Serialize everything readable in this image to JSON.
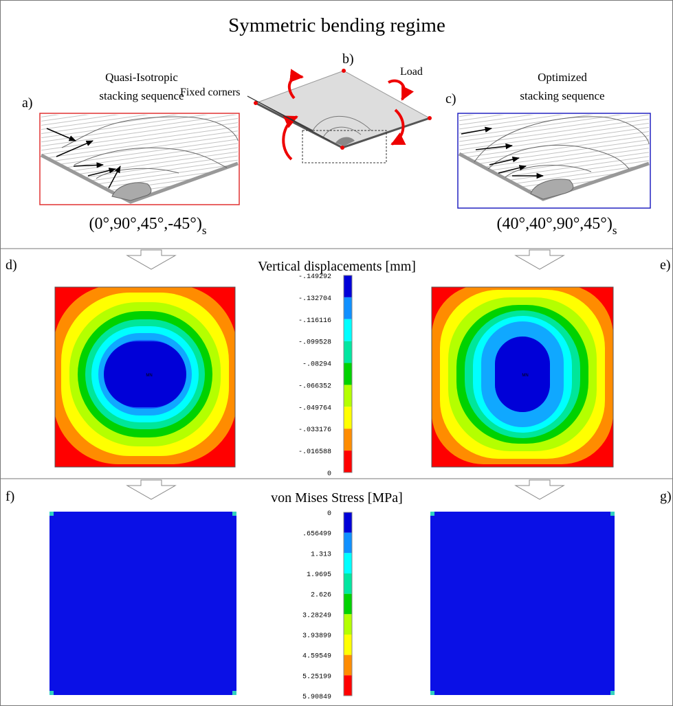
{
  "title": "Symmetric bending regime",
  "panel_labels": [
    "a)",
    "b)",
    "c)",
    "d)",
    "e)",
    "f)",
    "g)"
  ],
  "top": {
    "left_caption": [
      "Quasi-Isotropic",
      "stacking sequence"
    ],
    "left_sequence": {
      "text": "(0°,90°,45°,-45°)",
      "subscript": "s"
    },
    "fixed_label": "Fixed corners",
    "load_label": "Load",
    "right_caption": [
      "Optimized",
      "stacking sequence"
    ],
    "right_sequence": {
      "text": "(40°,40°,90°,45°)",
      "subscript": "s"
    }
  },
  "displacement": {
    "title": "Vertical displacements [mm]",
    "scale": [
      "-.149292",
      "-.132704",
      "-.116116",
      "-.099528",
      "-.08294",
      "-.066352",
      "-.049764",
      "-.033176",
      "-.016588",
      "0"
    ],
    "markers": [
      "MN",
      "MN"
    ]
  },
  "stress": {
    "title": "von Mises Stress [MPa]",
    "scale": [
      "0",
      ".656499",
      "1.313",
      "1.9695",
      "2.626",
      "3.28249",
      "3.93899",
      "4.59549",
      "5.25199",
      "5.90849"
    ]
  }
}
